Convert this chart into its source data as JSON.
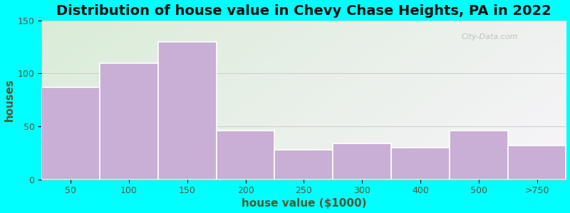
{
  "title": "Distribution of house value in Chevy Chase Heights, PA in 2022",
  "xlabel": "house value ($1000)",
  "ylabel": "houses",
  "categories": [
    "50",
    "100",
    "150",
    "200",
    "250",
    "300",
    "400",
    "500",
    ">750"
  ],
  "values": [
    87,
    110,
    130,
    46,
    28,
    34,
    30,
    46,
    32
  ],
  "bar_color": "#c9aed6",
  "bar_edgecolor": "#ffffff",
  "ylim": [
    0,
    150
  ],
  "yticks": [
    0,
    50,
    100,
    150
  ],
  "bg_outer": "#00ffff",
  "bg_plot_left_top": "#daecd8",
  "bg_plot_right_bottom": "#f8f4fa",
  "title_fontsize": 14,
  "axis_label_fontsize": 11,
  "tick_fontsize": 9,
  "watermark_text": "City-Data.com",
  "grid_color": "#cccccc",
  "text_color": "#555533"
}
